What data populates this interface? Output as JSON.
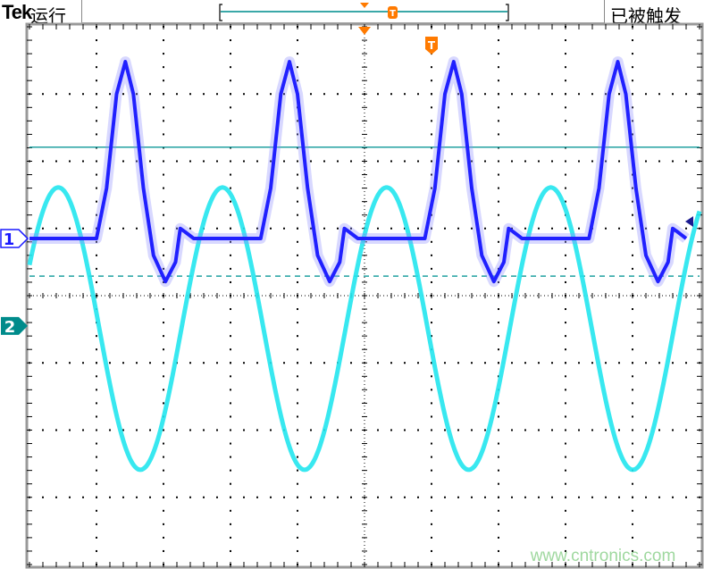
{
  "header": {
    "brand": "Tek",
    "status": "运行",
    "trigger_state": "已被触发"
  },
  "channels": [
    {
      "label": "1",
      "color": "#1a1aff"
    },
    {
      "label": "2",
      "color": "#008b8b"
    }
  ],
  "trigger_marker": "T",
  "watermark": "www.cntronics.com",
  "colors": {
    "ch1": "#2020ff",
    "ch2": "#22e6ee",
    "trigger": "#ff7a00",
    "level": "#20a0a0"
  },
  "chart_data": {
    "type": "line",
    "title": "",
    "xlabel": "",
    "ylabel": "",
    "xlim": [
      0,
      10
    ],
    "ylim": [
      -4,
      4
    ],
    "grid": true,
    "units": "divisions",
    "trigger_level_div": 2.21,
    "reference_dashed_div": 0.29,
    "series": [
      {
        "channel": "1",
        "period_div": 2.45,
        "offset_div": 0,
        "shape": [
          [
            0,
            0.85
          ],
          [
            1.0,
            0.85
          ],
          [
            1.15,
            1.6
          ],
          [
            1.3,
            3.0
          ],
          [
            1.43,
            3.48
          ],
          [
            1.55,
            3.0
          ],
          [
            1.7,
            1.6
          ],
          [
            1.85,
            0.6
          ],
          [
            2.03,
            0.21
          ],
          [
            2.18,
            0.5
          ],
          [
            2.25,
            1.0
          ],
          [
            2.32,
            0.95
          ],
          [
            2.45,
            0.85
          ]
        ]
      },
      {
        "channel": "2",
        "type": "sine",
        "center_div": -0.49,
        "amplitude_div": 2.1,
        "period_div": 2.45,
        "peak_at_div": 0.43
      }
    ]
  }
}
